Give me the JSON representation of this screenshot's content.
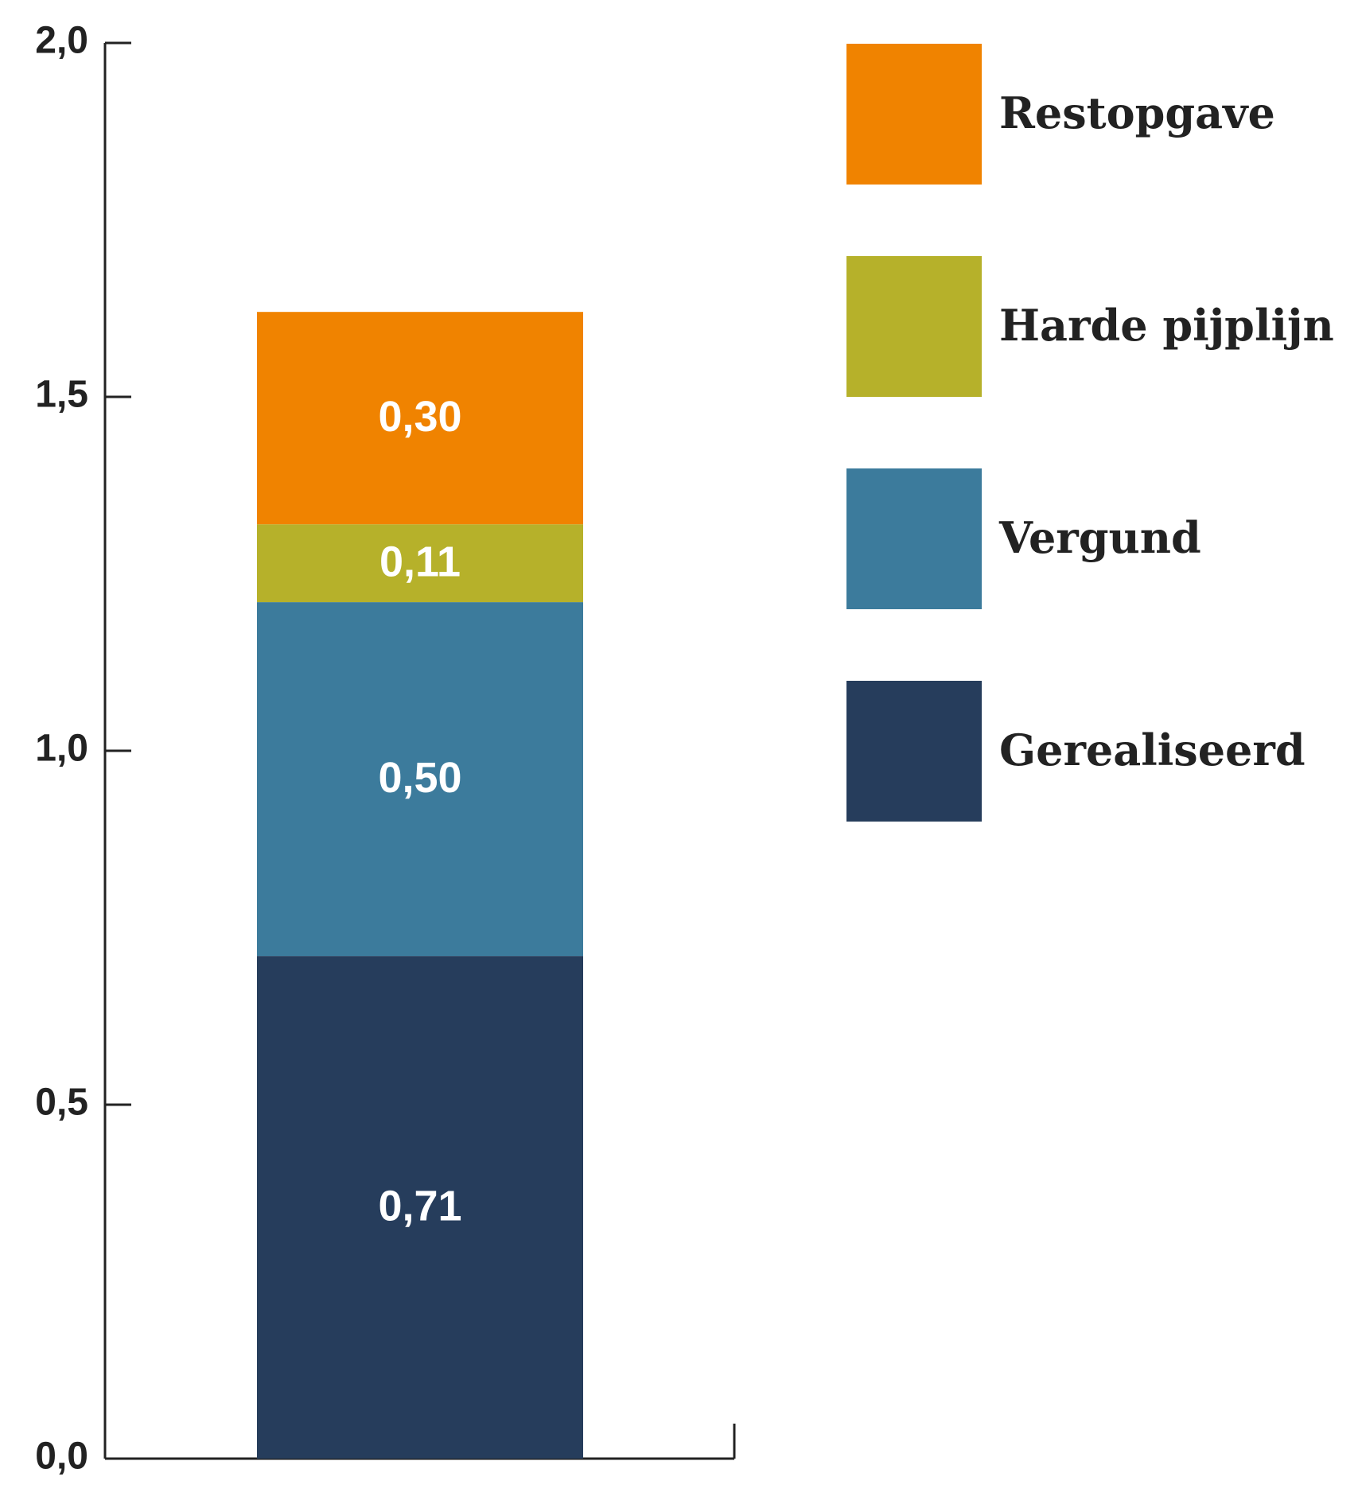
{
  "chart_data": {
    "type": "stacked_bar",
    "series": [
      {
        "name": "Gerealiseerd",
        "color": "#263d5c",
        "values": [
          0.71
        ],
        "value_labels": [
          "0,71"
        ]
      },
      {
        "name": "Vergund",
        "color": "#3c7b9c",
        "values": [
          0.5
        ],
        "value_labels": [
          "0,50"
        ]
      },
      {
        "name": "Harde pijplijn",
        "color": "#b6b12a",
        "values": [
          0.11
        ],
        "value_labels": [
          "0,11"
        ]
      },
      {
        "name": "Restopgave",
        "color": "#f08300",
        "values": [
          0.3
        ],
        "value_labels": [
          "0,30"
        ]
      }
    ],
    "ylim": [
      0,
      2
    ],
    "yticks": [
      {
        "value": 0,
        "label": "0,0"
      },
      {
        "value": 0.5,
        "label": "0,5"
      },
      {
        "value": 1,
        "label": "1,0"
      },
      {
        "value": 1.5,
        "label": "1,5"
      },
      {
        "value": 2,
        "label": "2,0"
      }
    ],
    "legend": "top-right"
  }
}
